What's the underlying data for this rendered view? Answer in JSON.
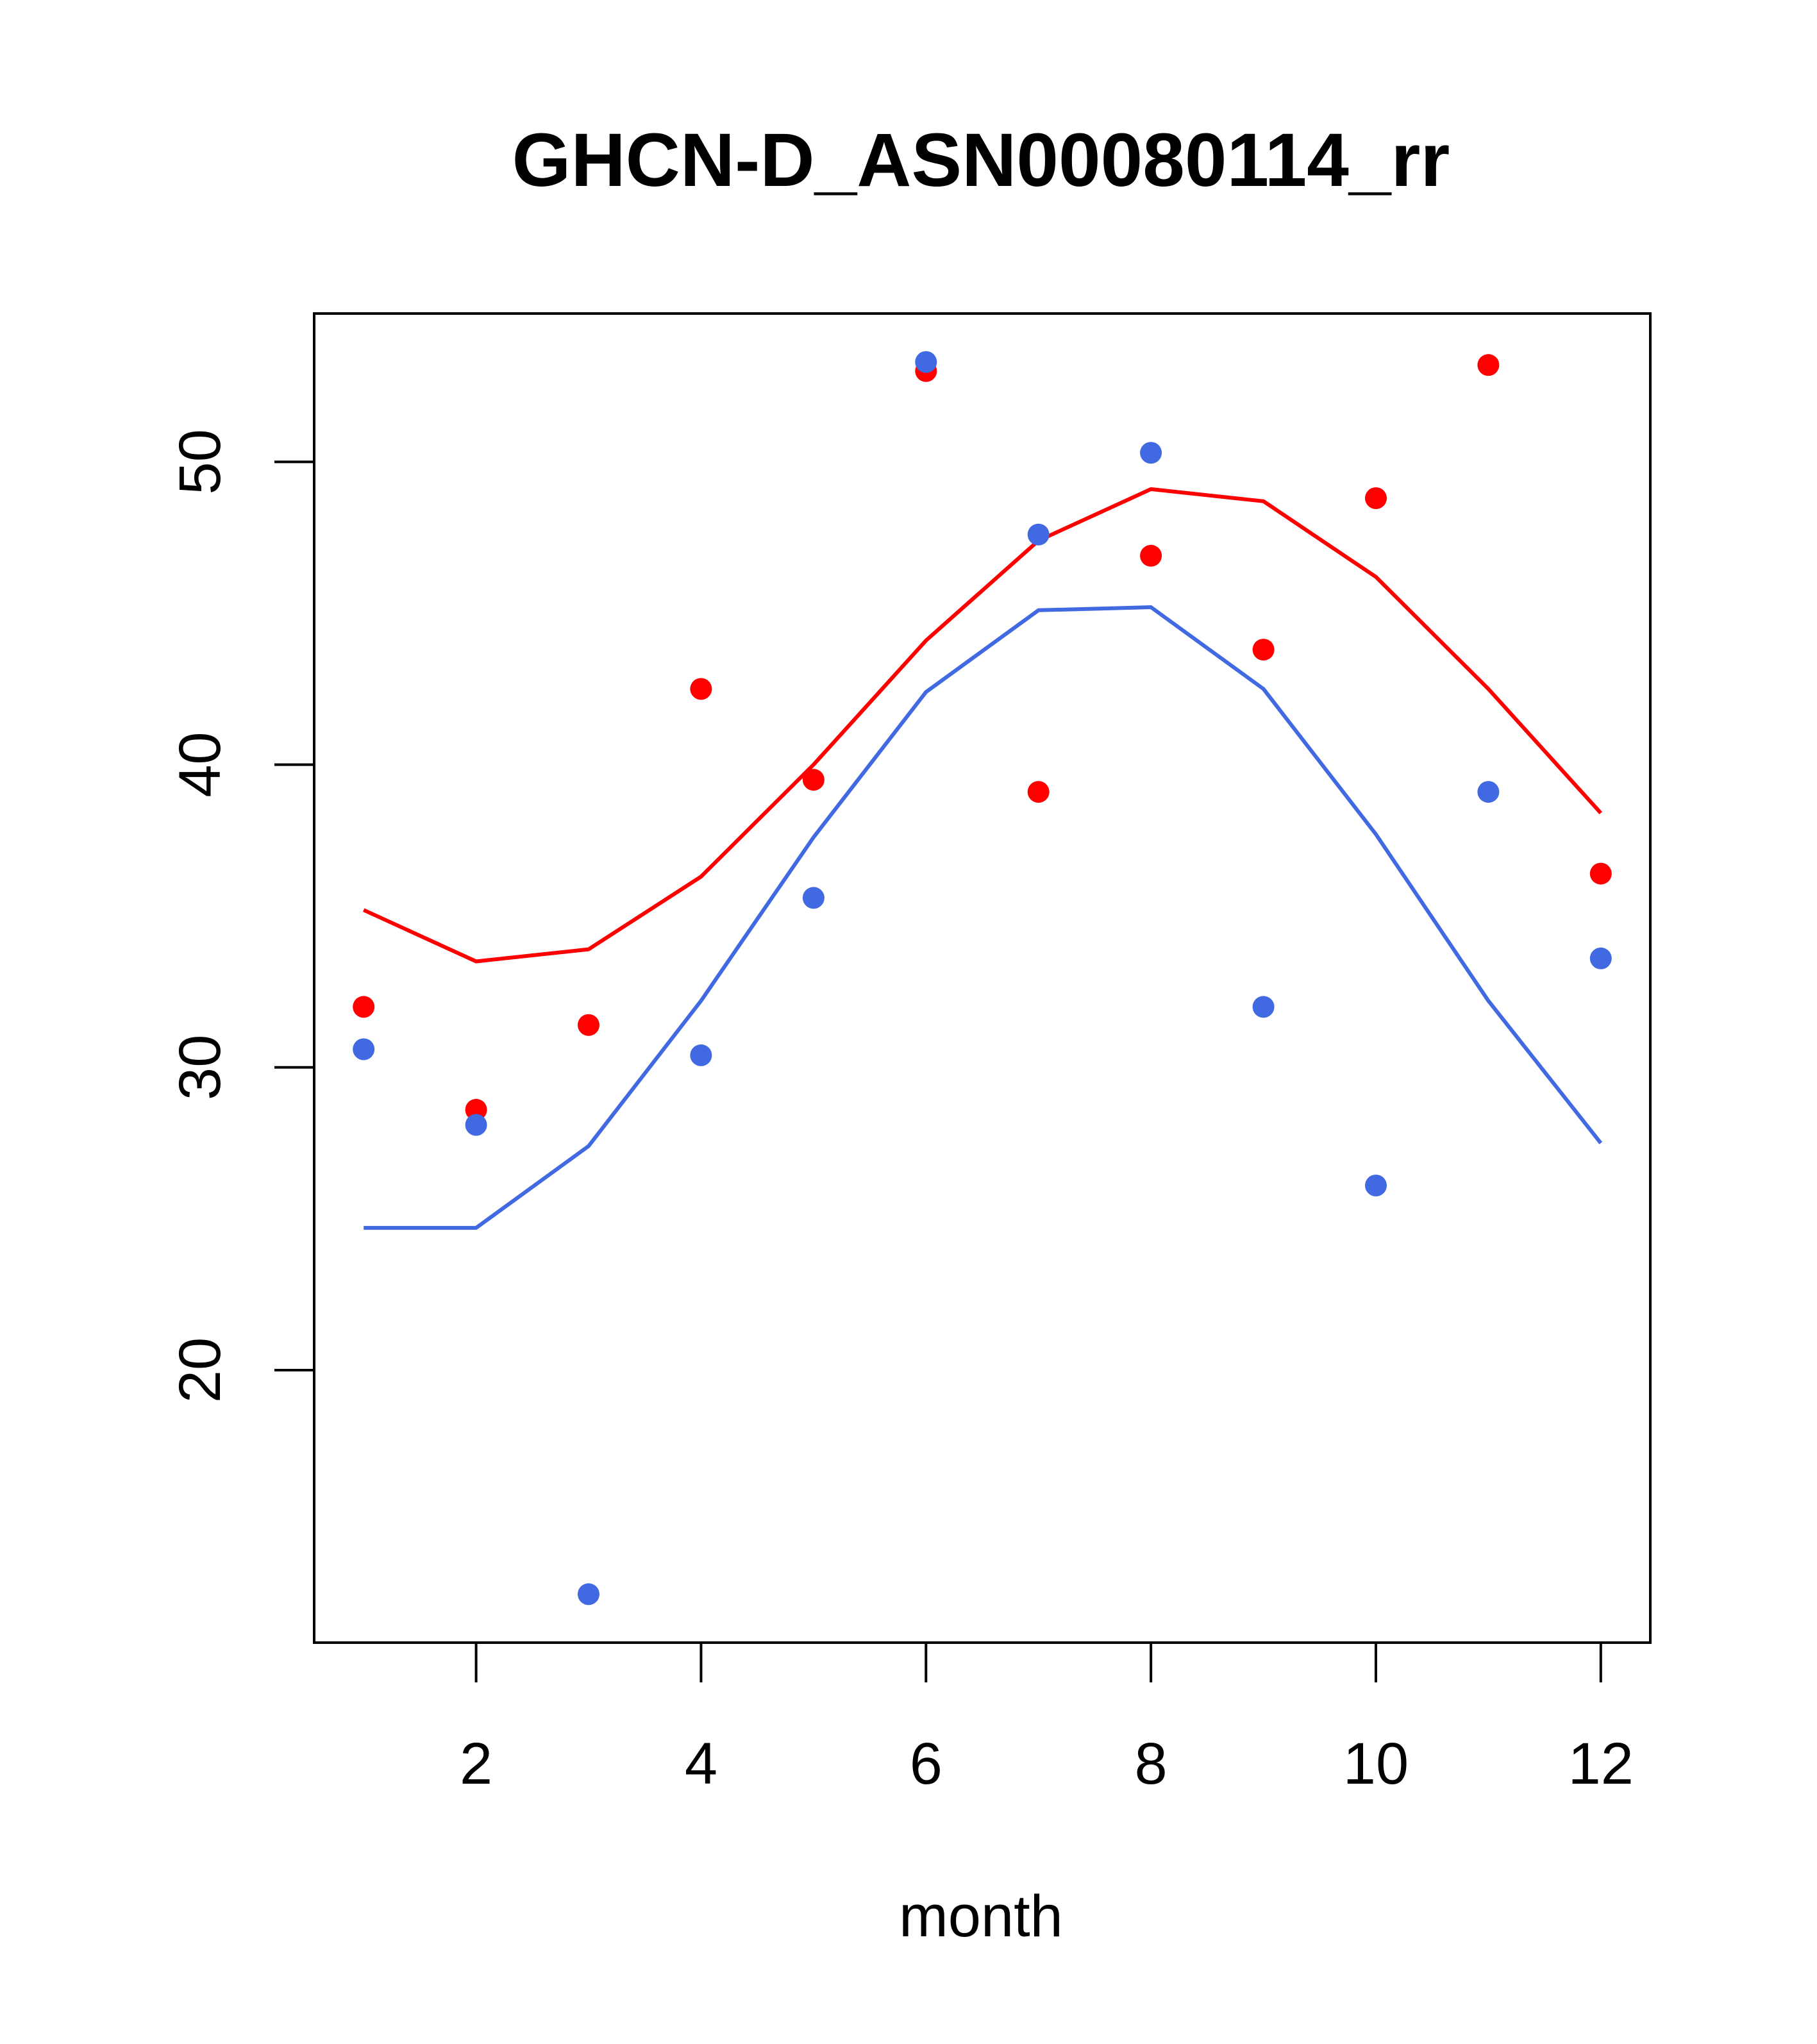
{
  "chart_data": {
    "type": "line",
    "title": "GHCN-D_ASN00080114_rr",
    "xlabel": "month",
    "ylabel": "",
    "xlim": [
      0.56,
      12.44
    ],
    "ylim": [
      11.0,
      54.9
    ],
    "x_ticks": [
      2,
      4,
      6,
      8,
      10,
      12
    ],
    "y_ticks": [
      20,
      30,
      40,
      50
    ],
    "grid": false,
    "legend": "none",
    "series": [
      {
        "color": "#ff0000",
        "kind": "line",
        "x": [
          1,
          2,
          3,
          4,
          5,
          6,
          7,
          8,
          9,
          10,
          11,
          12
        ],
        "values": [
          35.2,
          33.5,
          33.9,
          36.3,
          40.0,
          44.1,
          47.4,
          49.1,
          48.7,
          46.2,
          42.5,
          38.4
        ]
      },
      {
        "color": "#4169e1",
        "kind": "line",
        "x": [
          1,
          2,
          3,
          4,
          5,
          6,
          7,
          8,
          9,
          10,
          11,
          12
        ],
        "values": [
          24.7,
          24.7,
          27.4,
          32.2,
          37.6,
          42.4,
          45.1,
          45.2,
          42.5,
          37.7,
          32.2,
          27.5
        ]
      },
      {
        "color": "#ff0000",
        "kind": "points",
        "x": [
          1,
          2,
          3,
          4,
          5,
          6,
          7,
          8,
          9,
          10,
          11,
          12
        ],
        "values": [
          32.0,
          28.6,
          31.4,
          42.5,
          39.5,
          53.0,
          39.1,
          46.9,
          43.8,
          48.8,
          53.2,
          36.4
        ]
      },
      {
        "color": "#4169e1",
        "kind": "points",
        "x": [
          1,
          2,
          3,
          4,
          5,
          6,
          7,
          8,
          9,
          10,
          11,
          12
        ],
        "values": [
          30.6,
          28.1,
          12.6,
          30.4,
          35.6,
          53.3,
          47.6,
          50.3,
          32.0,
          26.1,
          39.1,
          33.6
        ]
      }
    ]
  }
}
